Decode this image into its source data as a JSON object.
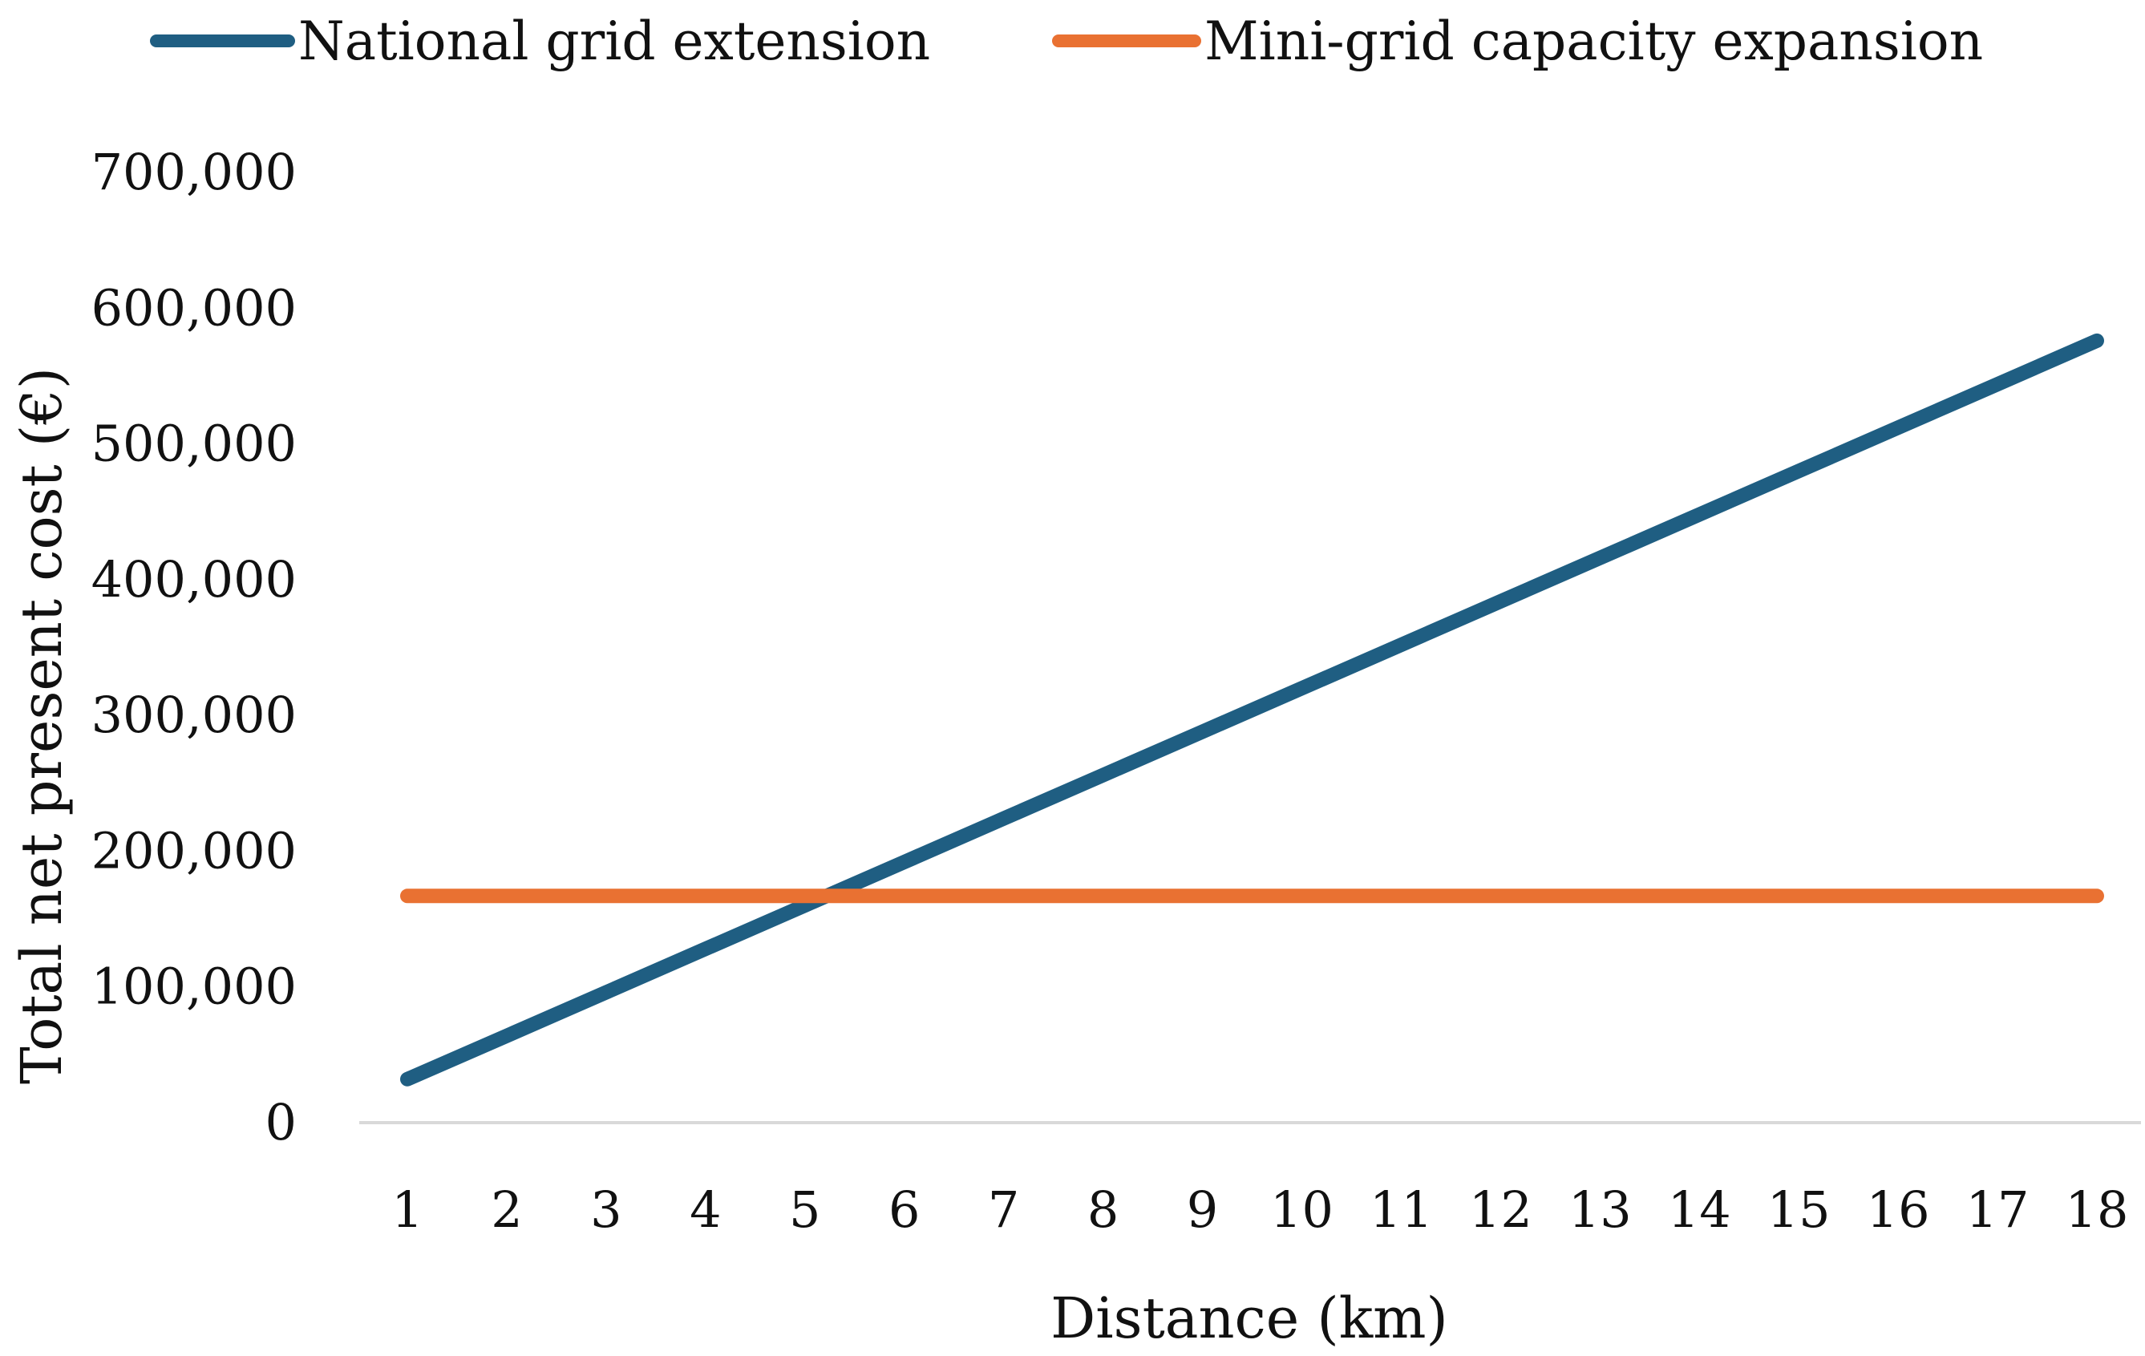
{
  "chart_data": {
    "type": "line",
    "title": "",
    "xlabel": "Distance (km)",
    "ylabel": "Total net present cost (€)",
    "categories": [
      "1",
      "2",
      "3",
      "4",
      "5",
      "6",
      "7",
      "8",
      "9",
      "10",
      "11",
      "12",
      "13",
      "14",
      "15",
      "16",
      "17",
      "18"
    ],
    "ylim": [
      0,
      700000
    ],
    "yticks": [
      0,
      100000,
      200000,
      300000,
      400000,
      500000,
      600000,
      700000
    ],
    "ytick_labels": [
      "0",
      "100,000",
      "200,000",
      "300,000",
      "400,000",
      "500,000",
      "600,000",
      "700,000"
    ],
    "grid": false,
    "legend_position": "top",
    "series": [
      {
        "name": "National grid extension",
        "color": "#1F5E82",
        "values": [
          32000,
          64000,
          96000,
          128000,
          160000,
          192000,
          224000,
          256000,
          288000,
          320000,
          352000,
          384000,
          416000,
          448000,
          480000,
          512000,
          544000,
          576000
        ]
      },
      {
        "name": "Mini-grid capacity expansion",
        "color": "#E97132",
        "values": [
          167000,
          167000,
          167000,
          167000,
          167000,
          167000,
          167000,
          167000,
          167000,
          167000,
          167000,
          167000,
          167000,
          167000,
          167000,
          167000,
          167000,
          167000
        ]
      }
    ],
    "axis_color": "#D9D9D9"
  }
}
